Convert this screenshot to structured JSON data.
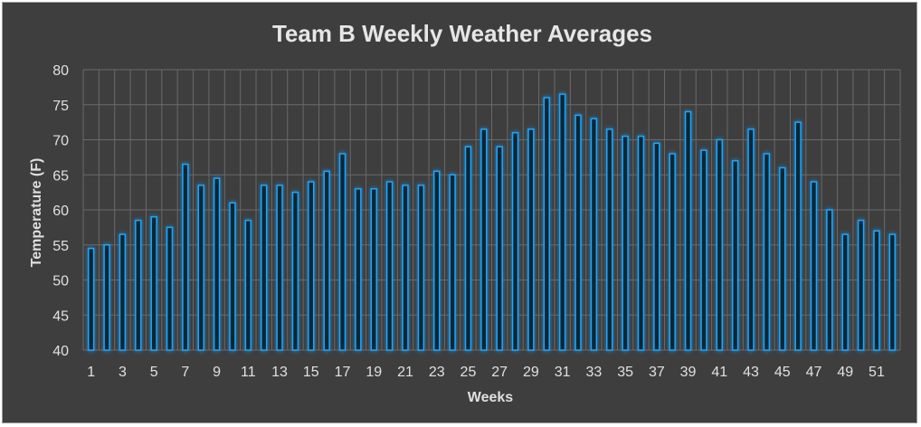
{
  "chart_data": {
    "type": "bar",
    "title": "Team B Weekly Weather Averages",
    "xlabel": "Weeks",
    "ylabel": "Temperature (F)",
    "ylim": [
      40,
      80
    ],
    "yticks": [
      40,
      45,
      50,
      55,
      60,
      65,
      70,
      75,
      80
    ],
    "xticks": [
      "1",
      "3",
      "5",
      "7",
      "9",
      "11",
      "13",
      "15",
      "17",
      "19",
      "21",
      "23",
      "25",
      "27",
      "29",
      "31",
      "33",
      "35",
      "37",
      "39",
      "41",
      "43",
      "45",
      "47",
      "49",
      "51"
    ],
    "categories": [
      1,
      2,
      3,
      4,
      5,
      6,
      7,
      8,
      9,
      10,
      11,
      12,
      13,
      14,
      15,
      16,
      17,
      18,
      19,
      20,
      21,
      22,
      23,
      24,
      25,
      26,
      27,
      28,
      29,
      30,
      31,
      32,
      33,
      34,
      35,
      36,
      37,
      38,
      39,
      40,
      41,
      42,
      43,
      44,
      45,
      46,
      47,
      48,
      49,
      50,
      51,
      52
    ],
    "values": [
      54.5,
      55,
      56.5,
      58.5,
      59,
      57.5,
      66.5,
      63.5,
      64.5,
      61,
      58.5,
      63.5,
      63.5,
      62.5,
      64,
      65.5,
      68,
      63,
      63,
      64,
      63.5,
      63.5,
      65.5,
      65,
      69,
      71.5,
      69,
      71,
      71.5,
      76,
      76.5,
      73.5,
      73,
      71.5,
      70.5,
      70.5,
      69.5,
      68,
      74,
      68.5,
      70,
      67,
      71.5,
      68,
      66,
      72.5,
      64,
      60,
      56.5,
      58.5,
      57,
      56.5
    ],
    "grid": true,
    "legend": "none",
    "colors": {
      "background": "#3e3e3e",
      "bar_stroke": "#1ea7ff",
      "bar_fill": "#0f2533",
      "glow": "#1e90ff",
      "grid": "#6a6a6a",
      "text": "#e0e0e0"
    }
  }
}
